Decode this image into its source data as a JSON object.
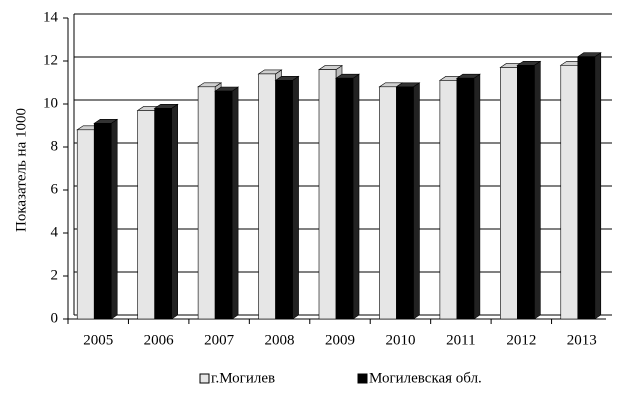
{
  "chart_data": {
    "type": "bar",
    "categories": [
      "2005",
      "2006",
      "2007",
      "2008",
      "2009",
      "2010",
      "2011",
      "2012",
      "2013"
    ],
    "series": [
      {
        "name": "г.Могилев",
        "color": "#e6e6e6",
        "values": [
          8.8,
          9.7,
          10.8,
          11.4,
          11.6,
          10.8,
          11.1,
          11.7,
          11.8
        ]
      },
      {
        "name": "Могилевская обл.",
        "color": "#000000",
        "values": [
          9.1,
          9.8,
          10.6,
          11.1,
          11.2,
          10.8,
          11.2,
          11.8,
          12.2
        ]
      }
    ],
    "ylabel": "Показатель на 1000",
    "ylim": [
      0,
      14
    ],
    "yticks": [
      0,
      2,
      4,
      6,
      8,
      10,
      12,
      14
    ],
    "grid": true,
    "legend": "bottom"
  }
}
